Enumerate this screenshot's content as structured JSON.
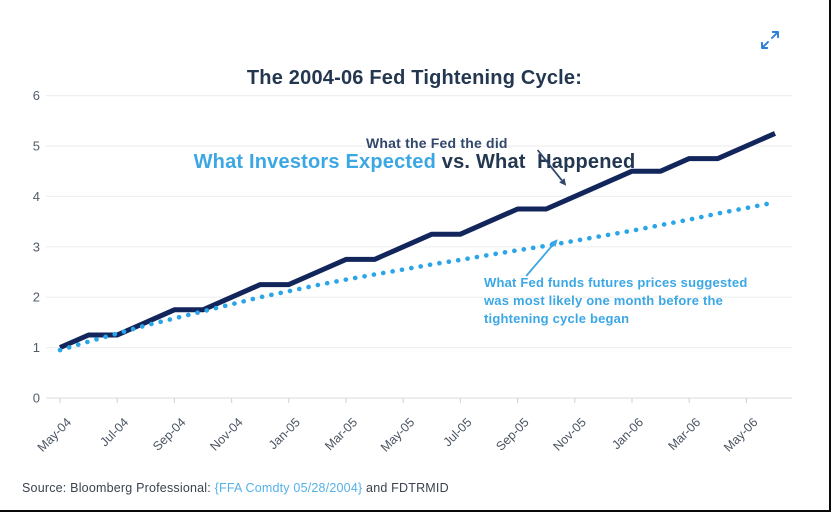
{
  "header": {
    "title_line1": "The 2004-06 Fed Tightening Cycle:",
    "title_line2_highlight": "What Investors Expected",
    "title_line2_rest": " vs. What  Happened"
  },
  "colors": {
    "title_navy": "#243750",
    "title_blue": "#3ba7e4",
    "actual_line_navy": "#12265c",
    "expected_dots_blue": "#29a5e8",
    "axis_label_gray": "#4f5a68",
    "gridline_gray": "#efefef",
    "source_link_blue": "#55b1ea",
    "expand_icon_blue": "#2b7fd4"
  },
  "chart_data": {
    "type": "line",
    "title": "The 2004-06 Fed Tightening Cycle: What Investors Expected vs. What Happened",
    "xlabel": "",
    "ylabel": "",
    "ylim": [
      0,
      6
    ],
    "yticks": [
      0,
      1,
      2,
      3,
      4,
      5,
      6
    ],
    "grid": "horizontal",
    "x": [
      "May-04",
      "Jun-04",
      "Jul-04",
      "Aug-04",
      "Sep-04",
      "Oct-04",
      "Nov-04",
      "Dec-04",
      "Jan-05",
      "Feb-05",
      "Mar-05",
      "Apr-05",
      "May-05",
      "Jun-05",
      "Jul-05",
      "Aug-05",
      "Sep-05",
      "Oct-05",
      "Nov-05",
      "Dec-05",
      "Jan-06",
      "Feb-06",
      "Mar-06",
      "Apr-06",
      "May-06",
      "Jun-06"
    ],
    "x_tick_labels": [
      "May-04",
      "Jul-04",
      "Sep-04",
      "Nov-04",
      "Jan-05",
      "Mar-05",
      "May-05",
      "Jul-05",
      "Sep-05",
      "Nov-05",
      "Jan-06",
      "Mar-06",
      "May-06"
    ],
    "series": [
      {
        "name": "What the Fed did (actual fed funds target, %)",
        "style": "solid",
        "color": "#12265c",
        "values": [
          1.0,
          1.25,
          1.25,
          1.5,
          1.75,
          1.75,
          2.0,
          2.25,
          2.25,
          2.5,
          2.75,
          2.75,
          3.0,
          3.25,
          3.25,
          3.5,
          3.75,
          3.75,
          4.0,
          4.25,
          4.5,
          4.5,
          4.75,
          4.75,
          5.0,
          5.25
        ]
      },
      {
        "name": "Fed funds futures implied path one month before tightening began, %",
        "style": "dotted",
        "color": "#29a5e8",
        "values": [
          0.95,
          1.12,
          1.28,
          1.44,
          1.58,
          1.72,
          1.86,
          2.0,
          2.12,
          2.24,
          2.35,
          2.45,
          2.55,
          2.65,
          2.74,
          2.84,
          2.93,
          3.02,
          3.12,
          3.22,
          3.32,
          3.43,
          3.54,
          3.66,
          3.77,
          3.88
        ]
      }
    ],
    "annotations": [
      {
        "text": "What the Fed the did",
        "color": "#31476b",
        "arrow_tail": {
          "month": 16.7,
          "value": 4.92
        },
        "arrow_tip": {
          "month": 17.7,
          "value": 4.21
        }
      },
      {
        "text_lines": [
          "What Fed funds futures prices suggested",
          "was most likely one month before the",
          "tightening cycle began"
        ],
        "color": "#3ba7e4",
        "arrow_tail": {
          "month": 16.3,
          "value": 2.42
        },
        "arrow_tip": {
          "month": 17.4,
          "value": 3.15
        }
      }
    ]
  },
  "footer": {
    "source_prefix": "Source: Bloomberg Professional: ",
    "source_link": "{FFA Comdty 05/28/2004}",
    "source_suffix": " and FDTRMID"
  }
}
